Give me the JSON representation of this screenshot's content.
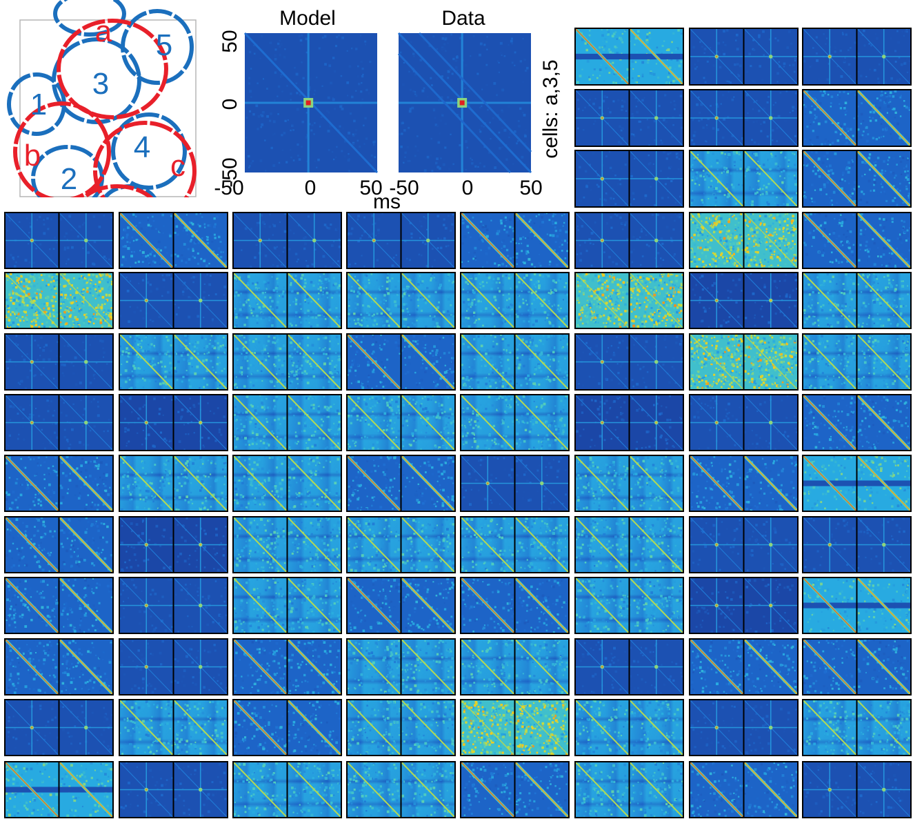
{
  "colors": {
    "on_cell": "#1b6fbd",
    "off_cell": "#e8202a",
    "map_low": "#1a3d9c",
    "map_high": "#e02020",
    "panel_border": "#000000"
  },
  "rf_panel": {
    "cells": [
      {
        "label": "a",
        "type": "off"
      },
      {
        "label": "b",
        "type": "off"
      },
      {
        "label": "c",
        "type": "off"
      },
      {
        "label": "1",
        "type": "on"
      },
      {
        "label": "2",
        "type": "on"
      },
      {
        "label": "3",
        "type": "on"
      },
      {
        "label": "4",
        "type": "on"
      },
      {
        "label": "5",
        "type": "on"
      }
    ]
  },
  "example": {
    "titles": [
      "Model",
      "Data"
    ],
    "y_ticks": [
      "50",
      "0",
      "-50"
    ],
    "x_ticks_model": [
      "-50",
      "0",
      "50"
    ],
    "x_ticks_data": [
      "-50",
      "0",
      "50"
    ],
    "xlabel": "ms",
    "ylabel": "cells: a,3,5",
    "range_ms": [
      -50,
      50
    ]
  },
  "chart_data": {
    "type": "heatmap",
    "description_of_panels": "Grid of paired Model|Data correlation maps (3 rows x 3 cols top-right, 10 rows x 8 cols below)",
    "top_grid": {
      "rows": 3,
      "cols": 3,
      "patterns": [
        [
          "diagH",
          "cross",
          "cross"
        ],
        [
          "cross",
          "cross",
          "diag"
        ],
        [
          "cross",
          "bands",
          "diag"
        ]
      ]
    },
    "main_grid": {
      "rows": 10,
      "cols": 8,
      "patterns": [
        [
          "cross",
          "diag",
          "cross",
          "cross",
          "diag",
          "cross",
          "noise",
          "diag"
        ],
        [
          "noise",
          "cross",
          "bands",
          "bands",
          "bands",
          "noise",
          "dark",
          "bands"
        ],
        [
          "cross",
          "bands",
          "bands",
          "diag",
          "bands",
          "cross",
          "noise",
          "bands"
        ],
        [
          "cross",
          "dark",
          "bands",
          "bands",
          "bands",
          "dark",
          "cross",
          "diag"
        ],
        [
          "diag",
          "bands",
          "bands",
          "diag",
          "cross",
          "bands",
          "diag",
          "diagH"
        ],
        [
          "diag",
          "dark",
          "bands",
          "bands",
          "bands",
          "bands",
          "cross",
          "cross"
        ],
        [
          "diag",
          "cross",
          "bands",
          "diag",
          "diag",
          "bands",
          "dark",
          "diagH"
        ],
        [
          "diag",
          "cross",
          "diag",
          "bands",
          "bands",
          "cross",
          "diag",
          "diag"
        ],
        [
          "cross",
          "bands",
          "diag",
          "bands",
          "noise",
          "bands",
          "cross",
          "bands"
        ],
        [
          "diagH",
          "cross",
          "bands",
          "bands",
          "diag",
          "bands",
          "diag",
          "cross"
        ]
      ]
    },
    "x_range_ms": [
      -50,
      50
    ],
    "y_range_ms": [
      -50,
      50
    ]
  }
}
